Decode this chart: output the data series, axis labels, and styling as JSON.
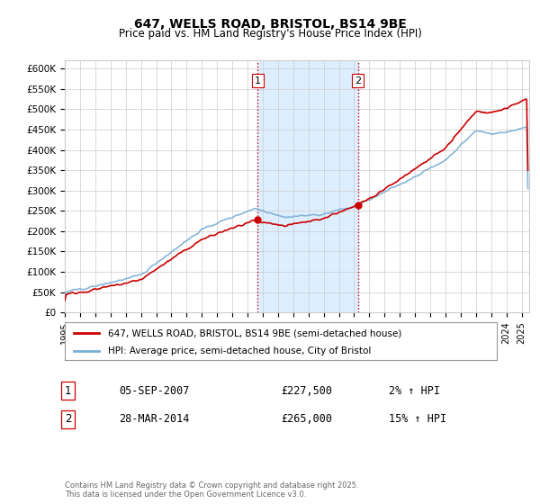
{
  "title": "647, WELLS ROAD, BRISTOL, BS14 9BE",
  "subtitle": "Price paid vs. HM Land Registry's House Price Index (HPI)",
  "ylabel_ticks": [
    "£0",
    "£50K",
    "£100K",
    "£150K",
    "£200K",
    "£250K",
    "£300K",
    "£350K",
    "£400K",
    "£450K",
    "£500K",
    "£550K",
    "£600K"
  ],
  "ytick_values": [
    0,
    50000,
    100000,
    150000,
    200000,
    250000,
    300000,
    350000,
    400000,
    450000,
    500000,
    550000,
    600000
  ],
  "ylim": [
    0,
    620000
  ],
  "xlim_start": 1995.0,
  "xlim_end": 2025.5,
  "x_tick_years": [
    1995,
    1996,
    1997,
    1998,
    1999,
    2000,
    2001,
    2002,
    2003,
    2004,
    2005,
    2006,
    2007,
    2008,
    2009,
    2010,
    2011,
    2012,
    2013,
    2014,
    2015,
    2016,
    2017,
    2018,
    2019,
    2020,
    2021,
    2022,
    2023,
    2024,
    2025
  ],
  "sale1_x": 2007.674,
  "sale1_y": 227500,
  "sale1_label": "1",
  "sale1_date": "05-SEP-2007",
  "sale1_price": "£227,500",
  "sale1_hpi": "2% ↑ HPI",
  "sale2_x": 2014.24,
  "sale2_y": 265000,
  "sale2_label": "2",
  "sale2_date": "28-MAR-2014",
  "sale2_price": "£265,000",
  "sale2_hpi": "15% ↑ HPI",
  "legend_line1": "647, WELLS ROAD, BRISTOL, BS14 9BE (semi-detached house)",
  "legend_line2": "HPI: Average price, semi-detached house, City of Bristol",
  "footnote": "Contains HM Land Registry data © Crown copyright and database right 2025.\nThis data is licensed under the Open Government Licence v3.0.",
  "color_price": "#cc0000",
  "color_hpi": "#7aaed4",
  "color_highlight": "#ddeeff",
  "color_vline": "#cc0000",
  "background_color": "#ffffff"
}
